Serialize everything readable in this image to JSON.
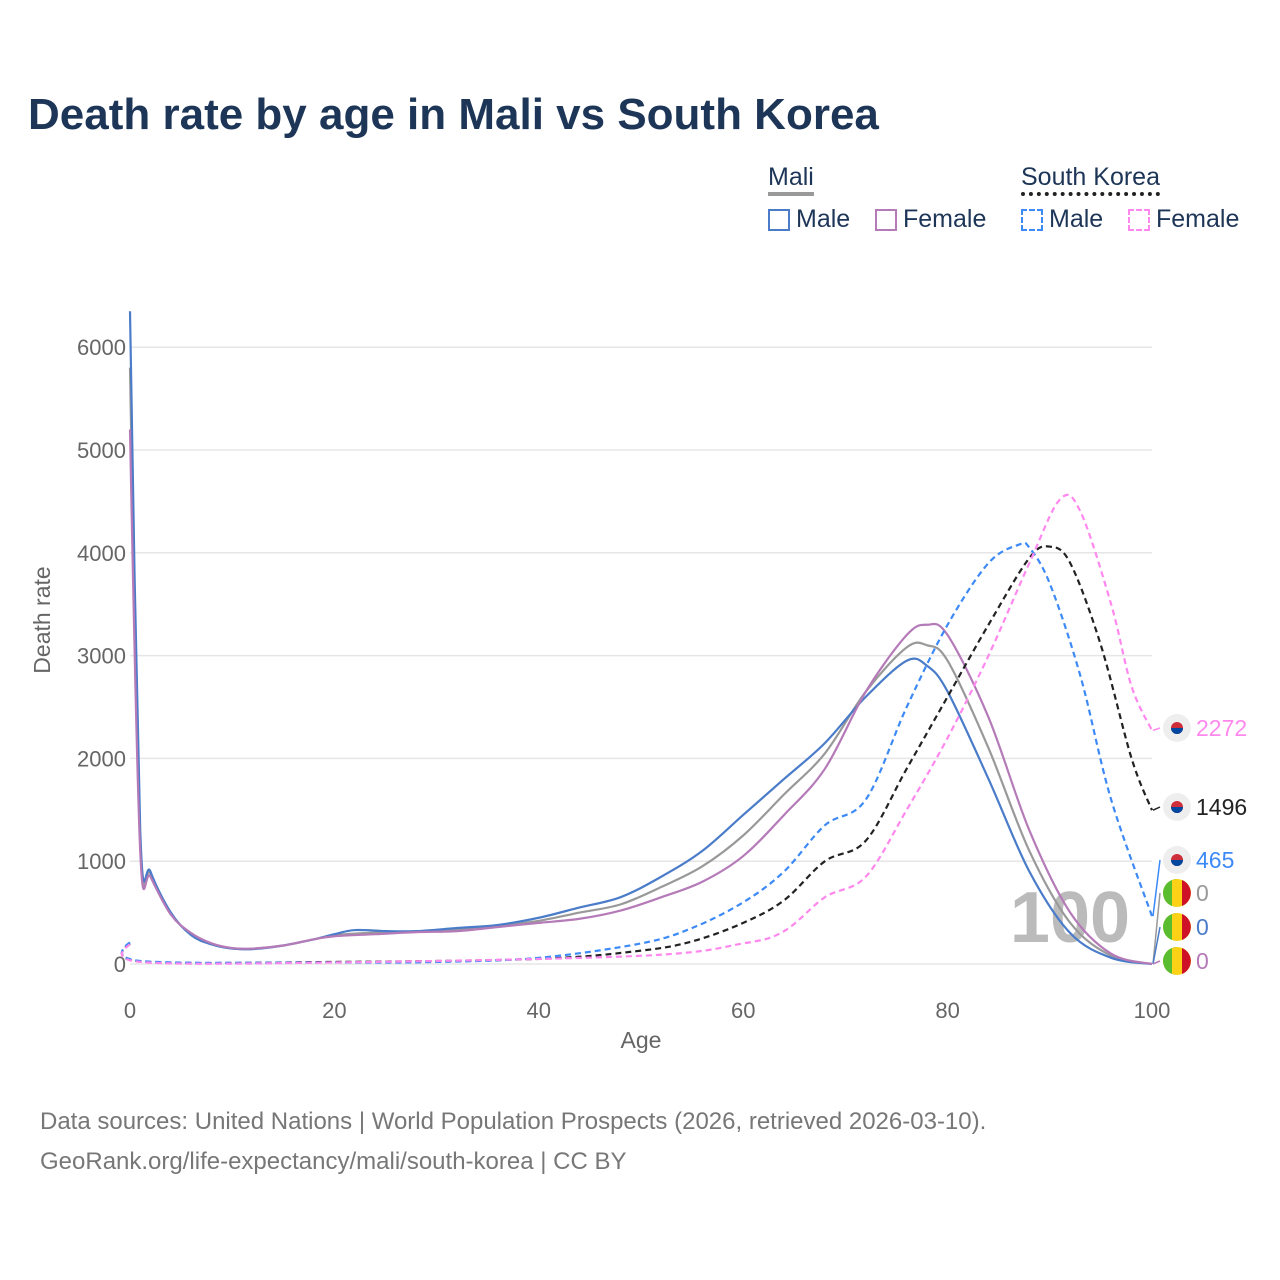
{
  "title": "Death rate by age in Mali vs South Korea",
  "legend": {
    "groups": [
      {
        "name": "Mali",
        "items": [
          "Male",
          "Female"
        ]
      },
      {
        "name": "South Korea",
        "items": [
          "Male",
          "Female"
        ]
      }
    ]
  },
  "footer": [
    "Data sources: United Nations | World Population Prospects (2026, retrieved 2026-03-10).",
    "GeoRank.org/life-expectancy/mali/south-korea | CC BY"
  ],
  "watermark": "100",
  "chart_data": {
    "type": "line",
    "title": "Death rate by age in Mali vs South Korea",
    "xlabel": "Age",
    "ylabel": "Death rate",
    "xlim": [
      0,
      100
    ],
    "ylim": [
      0,
      6300
    ],
    "xticks": [
      0,
      20,
      40,
      60,
      80,
      100
    ],
    "yticks": [
      0,
      1000,
      2000,
      3000,
      4000,
      5000,
      6000
    ],
    "grid": true,
    "series": [
      {
        "name": "Mali Total",
        "country": "Mali",
        "color": "#999999",
        "dashed": false,
        "end_label": "0",
        "x": [
          0,
          1,
          2,
          4,
          6,
          8,
          10,
          12,
          15,
          18,
          20,
          24,
          28,
          32,
          36,
          40,
          44,
          48,
          52,
          56,
          60,
          64,
          68,
          72,
          76,
          78,
          80,
          84,
          88,
          92,
          96,
          100
        ],
        "y": [
          5800,
          1200,
          880,
          490,
          290,
          195,
          150,
          148,
          180,
          240,
          280,
          305,
          315,
          335,
          370,
          420,
          500,
          580,
          750,
          950,
          1250,
          1650,
          2050,
          2650,
          3080,
          3100,
          2950,
          2100,
          1100,
          400,
          80,
          0
        ]
      },
      {
        "name": "Mali Male",
        "country": "Mali",
        "color": "#4a7cc9",
        "dashed": false,
        "end_label": "0",
        "x": [
          0,
          1,
          2,
          4,
          6,
          8,
          10,
          12,
          15,
          18,
          20,
          22,
          25,
          28,
          32,
          36,
          40,
          44,
          48,
          52,
          56,
          60,
          64,
          68,
          72,
          76,
          78,
          80,
          84,
          88,
          92,
          96,
          100
        ],
        "y": [
          6350,
          1300,
          900,
          500,
          280,
          190,
          150,
          145,
          180,
          240,
          290,
          330,
          320,
          320,
          350,
          380,
          450,
          550,
          650,
          850,
          1100,
          1450,
          1800,
          2150,
          2600,
          2950,
          2900,
          2650,
          1800,
          900,
          300,
          60,
          0
        ]
      },
      {
        "name": "Mali Female",
        "country": "Mali",
        "color": "#b57ab8",
        "dashed": false,
        "end_label": "0",
        "x": [
          0,
          1,
          2,
          4,
          6,
          8,
          10,
          12,
          15,
          18,
          20,
          24,
          28,
          32,
          36,
          40,
          44,
          48,
          52,
          56,
          60,
          64,
          68,
          72,
          76,
          78,
          80,
          84,
          88,
          92,
          96,
          100
        ],
        "y": [
          5200,
          1100,
          850,
          480,
          300,
          200,
          155,
          150,
          180,
          240,
          270,
          290,
          310,
          320,
          360,
          400,
          440,
          520,
          650,
          800,
          1050,
          1450,
          1900,
          2650,
          3200,
          3300,
          3200,
          2400,
          1300,
          500,
          100,
          0
        ]
      },
      {
        "name": "South Korea Total",
        "country": "South Korea",
        "color": "#222222",
        "dashed": true,
        "end_label": "1496",
        "x": [
          0,
          1,
          20,
          40,
          50,
          55,
          60,
          64,
          68,
          72,
          76,
          80,
          84,
          88,
          90,
          92,
          95,
          98,
          100
        ],
        "y": [
          200,
          25,
          20,
          50,
          130,
          220,
          400,
          620,
          1000,
          1200,
          1900,
          2600,
          3300,
          3950,
          4060,
          3900,
          3100,
          2000,
          1496
        ]
      },
      {
        "name": "South Korea Male",
        "country": "South Korea",
        "color": "#3d8af7",
        "dashed": true,
        "end_label": "465",
        "x": [
          0,
          1,
          20,
          30,
          40,
          50,
          55,
          60,
          64,
          68,
          72,
          76,
          80,
          84,
          87,
          88,
          90,
          93,
          96,
          100
        ],
        "y": [
          210,
          30,
          15,
          20,
          60,
          200,
          350,
          600,
          900,
          1350,
          1600,
          2500,
          3300,
          3900,
          4080,
          4050,
          3700,
          2800,
          1600,
          465
        ]
      },
      {
        "name": "South Korea Female",
        "country": "South Korea",
        "color": "#ff88ee",
        "dashed": true,
        "end_label": "2272",
        "x": [
          0,
          1,
          20,
          50,
          60,
          64,
          68,
          72,
          76,
          80,
          84,
          88,
          91,
          93,
          96,
          98,
          100
        ],
        "y": [
          190,
          20,
          15,
          80,
          200,
          320,
          650,
          850,
          1500,
          2200,
          3000,
          3900,
          4520,
          4400,
          3500,
          2700,
          2272
        ]
      }
    ]
  }
}
